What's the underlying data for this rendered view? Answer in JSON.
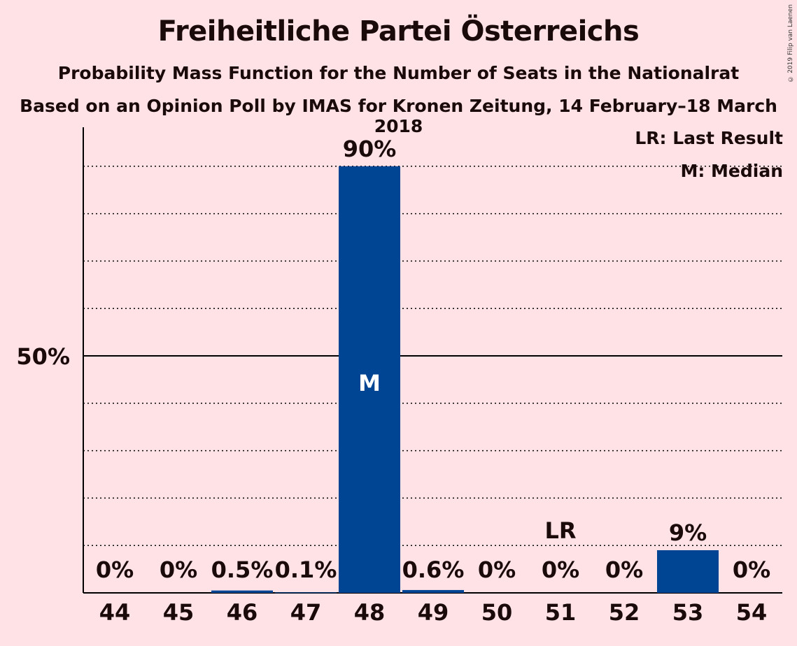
{
  "title": "Freiheitliche Partei Österreichs",
  "subtitle": "Probability Mass Function for the Number of Seats in the Nationalrat",
  "subtitle2": "Based on an Opinion Poll by IMAS for Kronen Zeitung, 14 February–18 March 2018",
  "copyright": "© 2019 Filip van Laenen",
  "legend": {
    "last_result": "LR: Last Result",
    "median": "M: Median"
  },
  "colors": {
    "background": "#FFE2E6",
    "bar": "#004494",
    "text": "#1a0a0a"
  },
  "chart_data": {
    "type": "bar",
    "categories": [
      "44",
      "45",
      "46",
      "47",
      "48",
      "49",
      "50",
      "51",
      "52",
      "53",
      "54"
    ],
    "values": [
      0,
      0,
      0.5,
      0.1,
      90,
      0.6,
      0,
      0,
      0,
      9,
      0
    ],
    "labels": [
      "0%",
      "0%",
      "0.5%",
      "0.1%",
      "90%",
      "0.6%",
      "0%",
      "0%",
      "0%",
      "9%",
      "0%"
    ],
    "ylim": [
      0,
      100
    ],
    "ytick_label": "50%",
    "ytick_value": 50,
    "median_category": "48",
    "median_marker": "M",
    "last_result_category": "51",
    "last_result_marker": "LR",
    "grid": true
  }
}
